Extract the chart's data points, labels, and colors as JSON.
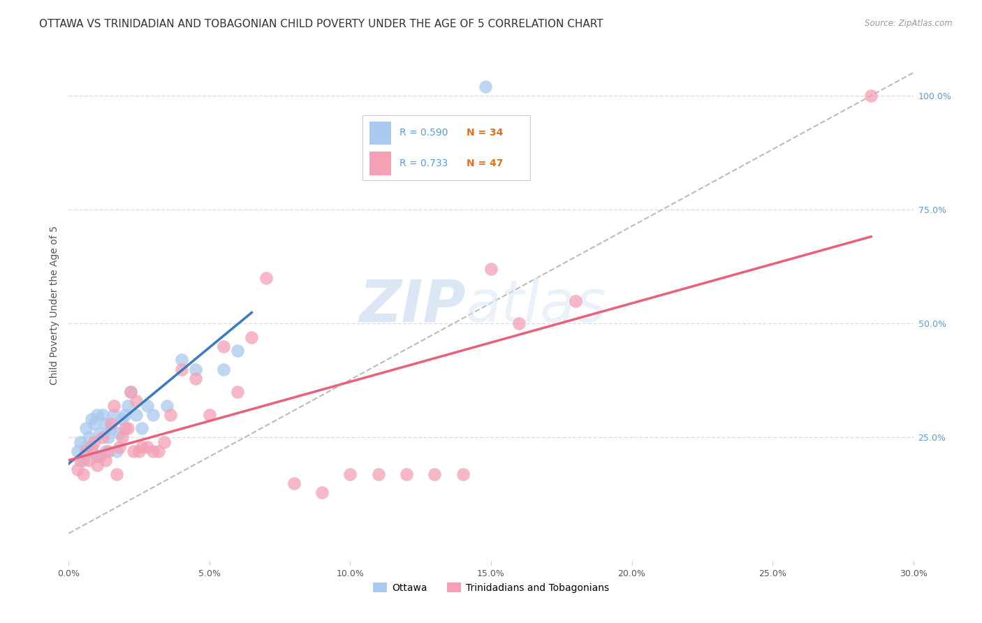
{
  "title": "OTTAWA VS TRINIDADIAN AND TOBAGONIAN CHILD POVERTY UNDER THE AGE OF 5 CORRELATION CHART",
  "source": "Source: ZipAtlas.com",
  "ylabel": "Child Poverty Under the Age of 5",
  "xlim": [
    0.0,
    0.3
  ],
  "ylim": [
    -0.02,
    1.1
  ],
  "xtick_labels": [
    "0.0%",
    "5.0%",
    "10.0%",
    "15.0%",
    "20.0%",
    "25.0%",
    "30.0%"
  ],
  "xtick_vals": [
    0.0,
    0.05,
    0.1,
    0.15,
    0.2,
    0.25,
    0.3
  ],
  "ytick_labels": [
    "25.0%",
    "50.0%",
    "75.0%",
    "100.0%"
  ],
  "ytick_vals": [
    0.25,
    0.5,
    0.75,
    1.0
  ],
  "grid_color": "#dddddd",
  "background_color": "#ffffff",
  "ottawa_color": "#aac9ee",
  "trinidadian_color": "#f4a0b5",
  "ottawa_R": 0.59,
  "ottawa_N": 34,
  "trinidadian_R": 0.733,
  "trinidadian_N": 47,
  "ottawa_line_color": "#3a7abf",
  "trinidadian_line_color": "#e8607a",
  "ottawa_scatter_x": [
    0.003,
    0.004,
    0.005,
    0.006,
    0.006,
    0.007,
    0.008,
    0.008,
    0.009,
    0.01,
    0.01,
    0.011,
    0.012,
    0.013,
    0.013,
    0.014,
    0.015,
    0.016,
    0.017,
    0.018,
    0.019,
    0.02,
    0.021,
    0.022,
    0.024,
    0.026,
    0.028,
    0.03,
    0.035,
    0.04,
    0.045,
    0.055,
    0.06,
    0.148
  ],
  "ottawa_scatter_y": [
    0.22,
    0.24,
    0.2,
    0.23,
    0.27,
    0.25,
    0.29,
    0.22,
    0.28,
    0.21,
    0.3,
    0.26,
    0.3,
    0.22,
    0.28,
    0.25,
    0.27,
    0.3,
    0.22,
    0.26,
    0.29,
    0.3,
    0.32,
    0.35,
    0.3,
    0.27,
    0.32,
    0.3,
    0.32,
    0.42,
    0.4,
    0.4,
    0.44,
    1.02
  ],
  "trinidadian_scatter_x": [
    0.003,
    0.004,
    0.005,
    0.006,
    0.007,
    0.008,
    0.009,
    0.01,
    0.011,
    0.012,
    0.013,
    0.014,
    0.015,
    0.016,
    0.017,
    0.018,
    0.019,
    0.02,
    0.021,
    0.022,
    0.023,
    0.024,
    0.025,
    0.026,
    0.028,
    0.03,
    0.032,
    0.034,
    0.036,
    0.04,
    0.045,
    0.05,
    0.055,
    0.06,
    0.065,
    0.07,
    0.08,
    0.09,
    0.1,
    0.11,
    0.12,
    0.13,
    0.14,
    0.15,
    0.16,
    0.18,
    0.285
  ],
  "trinidadian_scatter_y": [
    0.18,
    0.2,
    0.17,
    0.22,
    0.2,
    0.23,
    0.24,
    0.19,
    0.21,
    0.25,
    0.2,
    0.22,
    0.28,
    0.32,
    0.17,
    0.23,
    0.25,
    0.27,
    0.27,
    0.35,
    0.22,
    0.33,
    0.22,
    0.23,
    0.23,
    0.22,
    0.22,
    0.24,
    0.3,
    0.4,
    0.38,
    0.3,
    0.45,
    0.35,
    0.47,
    0.6,
    0.15,
    0.13,
    0.17,
    0.17,
    0.17,
    0.17,
    0.17,
    0.62,
    0.5,
    0.55,
    1.0
  ],
  "watermark_zip": "ZIP",
  "watermark_atlas": "atlas",
  "title_fontsize": 11,
  "axis_label_fontsize": 10,
  "tick_fontsize": 9,
  "right_tick_color": "#5b9bd5",
  "n_color": "#e07020",
  "legend_border_color": "#cccccc",
  "ref_line_color": "#bbbbbb"
}
